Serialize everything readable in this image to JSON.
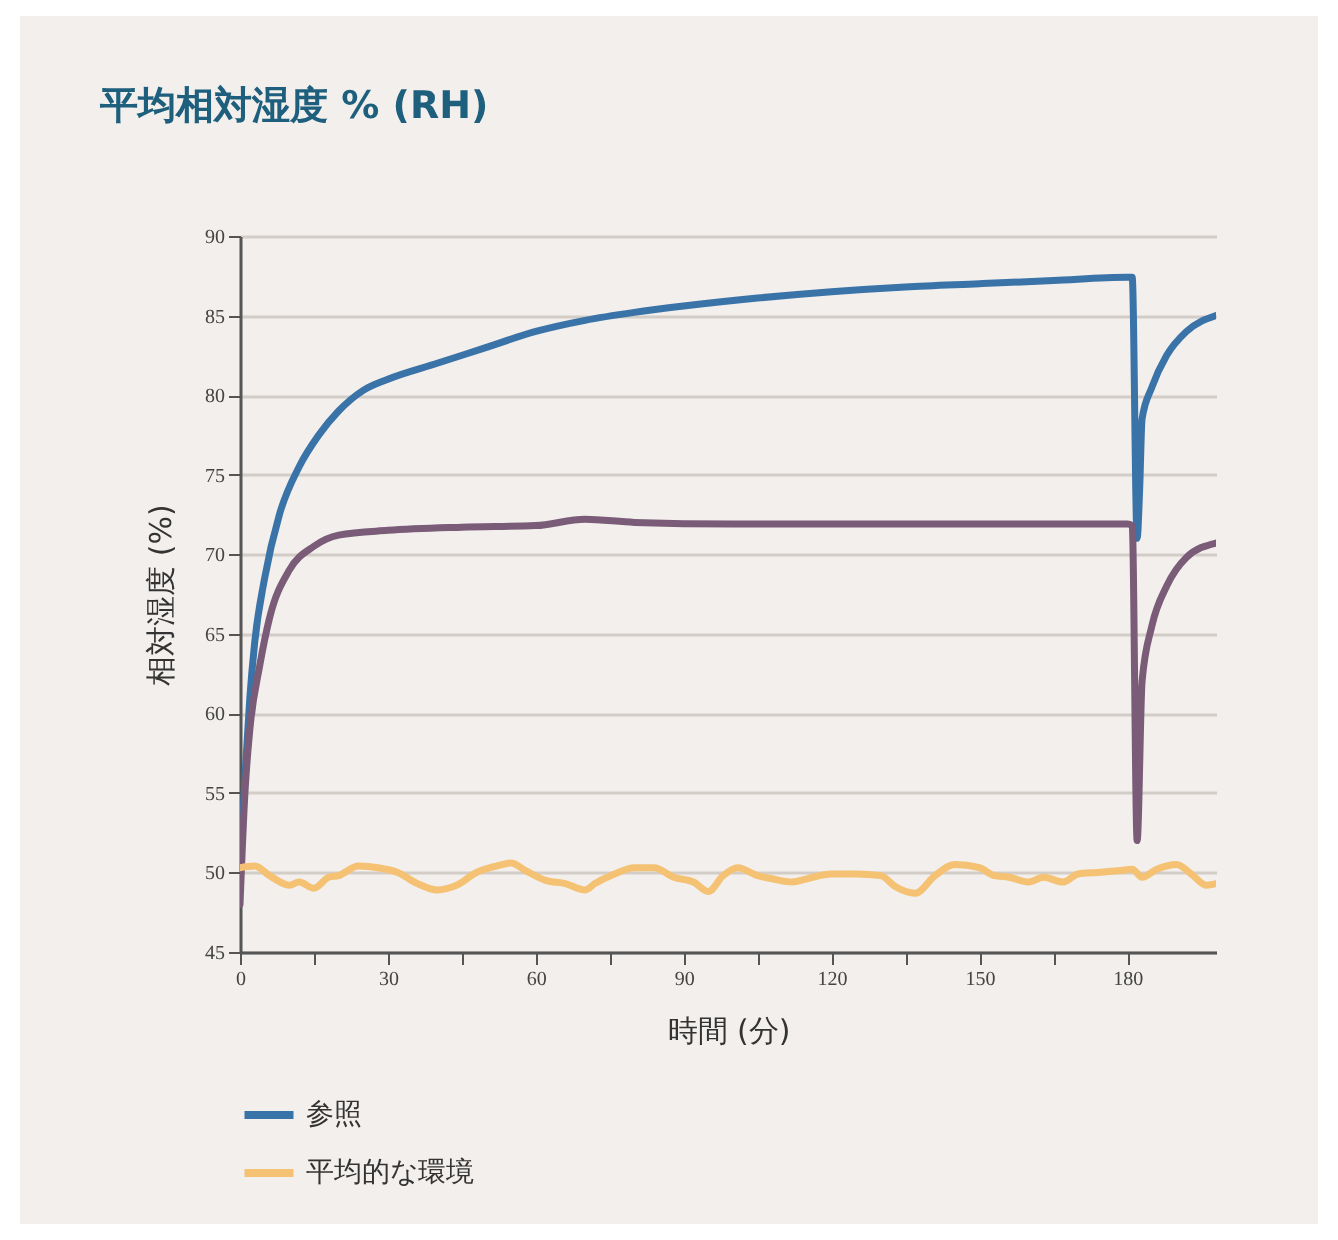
{
  "chart_data": {
    "type": "line",
    "title": "平均相対湿度 % (RH)",
    "xlabel": "時間 (分)",
    "ylabel": "相対湿度 (%)",
    "xlim": [
      0,
      198
    ],
    "xticks": [
      0,
      {
        "value": 15,
        "label": null
      },
      30,
      {
        "value": 45,
        "label": null
      },
      60,
      {
        "value": 75,
        "label": null
      },
      90,
      {
        "value": 105,
        "label": null
      },
      120,
      {
        "value": 135,
        "label": null
      },
      150,
      {
        "value": 165,
        "label": null
      },
      180
    ],
    "ylim": [
      45,
      90
    ],
    "yticks": [
      45,
      50,
      55,
      60,
      65,
      70,
      75,
      80,
      85,
      90
    ],
    "grid": "y",
    "legend": "bottom left",
    "line_style": "solid",
    "series": [
      {
        "name": "参照",
        "color": "#3a73a8",
        "x": [
          0,
          1,
          2,
          3,
          5,
          8,
          12,
          16,
          20,
          25,
          30,
          40,
          50,
          60,
          70,
          80,
          90,
          105,
          120,
          135,
          150,
          165,
          180,
          181,
          182,
          182.5,
          183,
          185,
          188,
          192,
          198
        ],
        "values": [
          50,
          56,
          61,
          64.5,
          68.5,
          72.5,
          75.5,
          77.5,
          79,
          80.3,
          81,
          82,
          83,
          84,
          84.7,
          85.2,
          85.6,
          86.1,
          86.5,
          86.8,
          87,
          87.2,
          87.4,
          87.4,
          71,
          74,
          78.5,
          80.5,
          82.5,
          84,
          85
        ]
      },
      {
        "color": "#7a5b78",
        "x": [
          0,
          1,
          2,
          4,
          6,
          10,
          15,
          20,
          30,
          45,
          60,
          70,
          80,
          100,
          120,
          150,
          180,
          181,
          182,
          183,
          185,
          188,
          192,
          198
        ],
        "values": [
          48,
          55,
          59,
          63,
          66,
          69,
          70.5,
          71.2,
          71.5,
          71.7,
          71.8,
          72.2,
          72,
          71.9,
          71.9,
          71.9,
          71.9,
          71.8,
          52,
          62,
          65.5,
          68,
          69.8,
          70.7
        ]
      },
      {
        "name": "平均的な環境",
        "color": "#f5c173",
        "x": [
          0,
          3,
          6,
          10,
          12,
          15,
          18,
          20,
          24,
          28,
          32,
          36,
          40,
          44,
          48,
          52,
          55,
          58,
          62,
          66,
          70,
          72,
          76,
          80,
          84,
          88,
          92,
          95,
          98,
          101,
          105,
          108,
          112,
          115,
          120,
          125,
          130,
          133,
          137,
          141,
          145,
          150,
          153,
          156,
          160,
          163,
          167,
          170,
          174,
          178,
          181,
          183,
          186,
          190,
          193,
          196,
          198
        ],
        "values": [
          50.3,
          50.4,
          49.8,
          49.2,
          49.4,
          49.0,
          49.7,
          49.8,
          50.4,
          50.3,
          50.0,
          49.3,
          48.9,
          49.2,
          50.0,
          50.4,
          50.6,
          50.1,
          49.5,
          49.3,
          48.9,
          49.3,
          49.9,
          50.3,
          50.3,
          49.7,
          49.4,
          48.8,
          49.8,
          50.3,
          49.8,
          49.6,
          49.4,
          49.6,
          49.9,
          49.9,
          49.8,
          49.1,
          48.7,
          49.8,
          50.5,
          50.3,
          49.8,
          49.7,
          49.4,
          49.7,
          49.4,
          49.9,
          50.0,
          50.1,
          50.2,
          49.7,
          50.2,
          50.5,
          49.9,
          49.2,
          49.3
        ]
      }
    ]
  }
}
